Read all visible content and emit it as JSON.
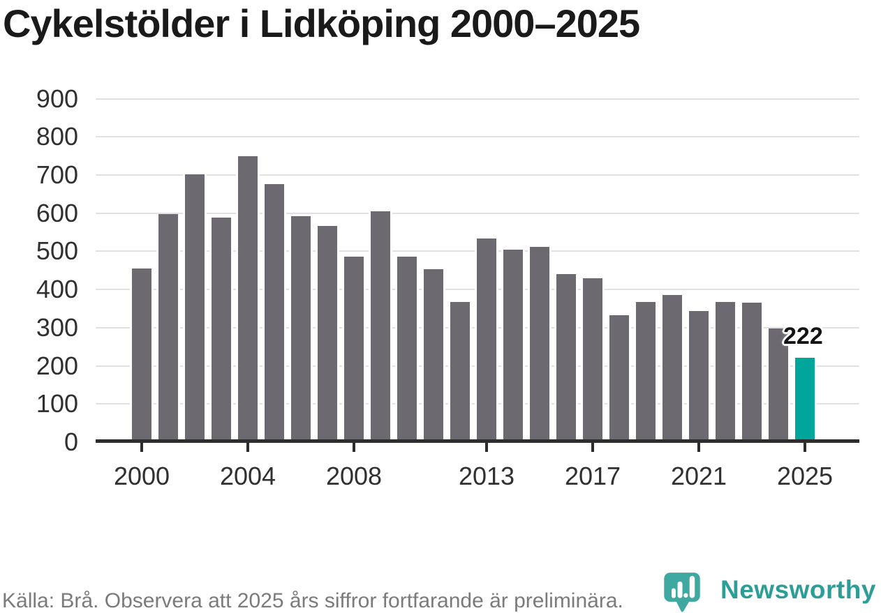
{
  "title": "Cykelstölder i Lidköping 2000–2025",
  "source_note": "Källa: Brå. Observera att 2025 års siffror fortfarande är preliminära.",
  "branding": {
    "name": "Newsworthy",
    "icon": "newsworthy-speech-bubble-chart-icon",
    "wordmark_color": "#2d9e97",
    "icon_color": "#3ea8a1"
  },
  "colors": {
    "bar": "#6c6970",
    "highlight": "#00a59c",
    "grid": "#e1e1e1",
    "axis": "#2d2d2d",
    "axis_label": "#303030",
    "title": "#1a1a1a",
    "source": "#7b7b7b",
    "value_label": "#141414",
    "background": "#ffffff"
  },
  "chart_data": {
    "type": "bar",
    "title": "Cykelstölder i Lidköping 2000–2025",
    "categories": [
      2000,
      2001,
      2002,
      2003,
      2004,
      2005,
      2006,
      2007,
      2008,
      2009,
      2010,
      2011,
      2012,
      2013,
      2014,
      2015,
      2016,
      2017,
      2018,
      2019,
      2020,
      2021,
      2022,
      2023,
      2024,
      2025
    ],
    "values": [
      455,
      597,
      701,
      588,
      749,
      676,
      593,
      567,
      486,
      605,
      487,
      453,
      367,
      534,
      504,
      512,
      441,
      430,
      333,
      368,
      386,
      344,
      367,
      365,
      297,
      222
    ],
    "highlight": {
      "category": 2025,
      "value": 222,
      "label": "222"
    },
    "xlabel": "",
    "ylabel": "",
    "ylim": [
      0,
      900
    ],
    "ytick_interval": 100,
    "ytick_labels": [
      "0",
      "100",
      "200",
      "300",
      "400",
      "500",
      "600",
      "700",
      "800",
      "900"
    ],
    "xtick_labels": [
      "2000",
      "2004",
      "2008",
      "2013",
      "2017",
      "2021",
      "2025"
    ],
    "grid": "horizontal",
    "legend": "none"
  }
}
